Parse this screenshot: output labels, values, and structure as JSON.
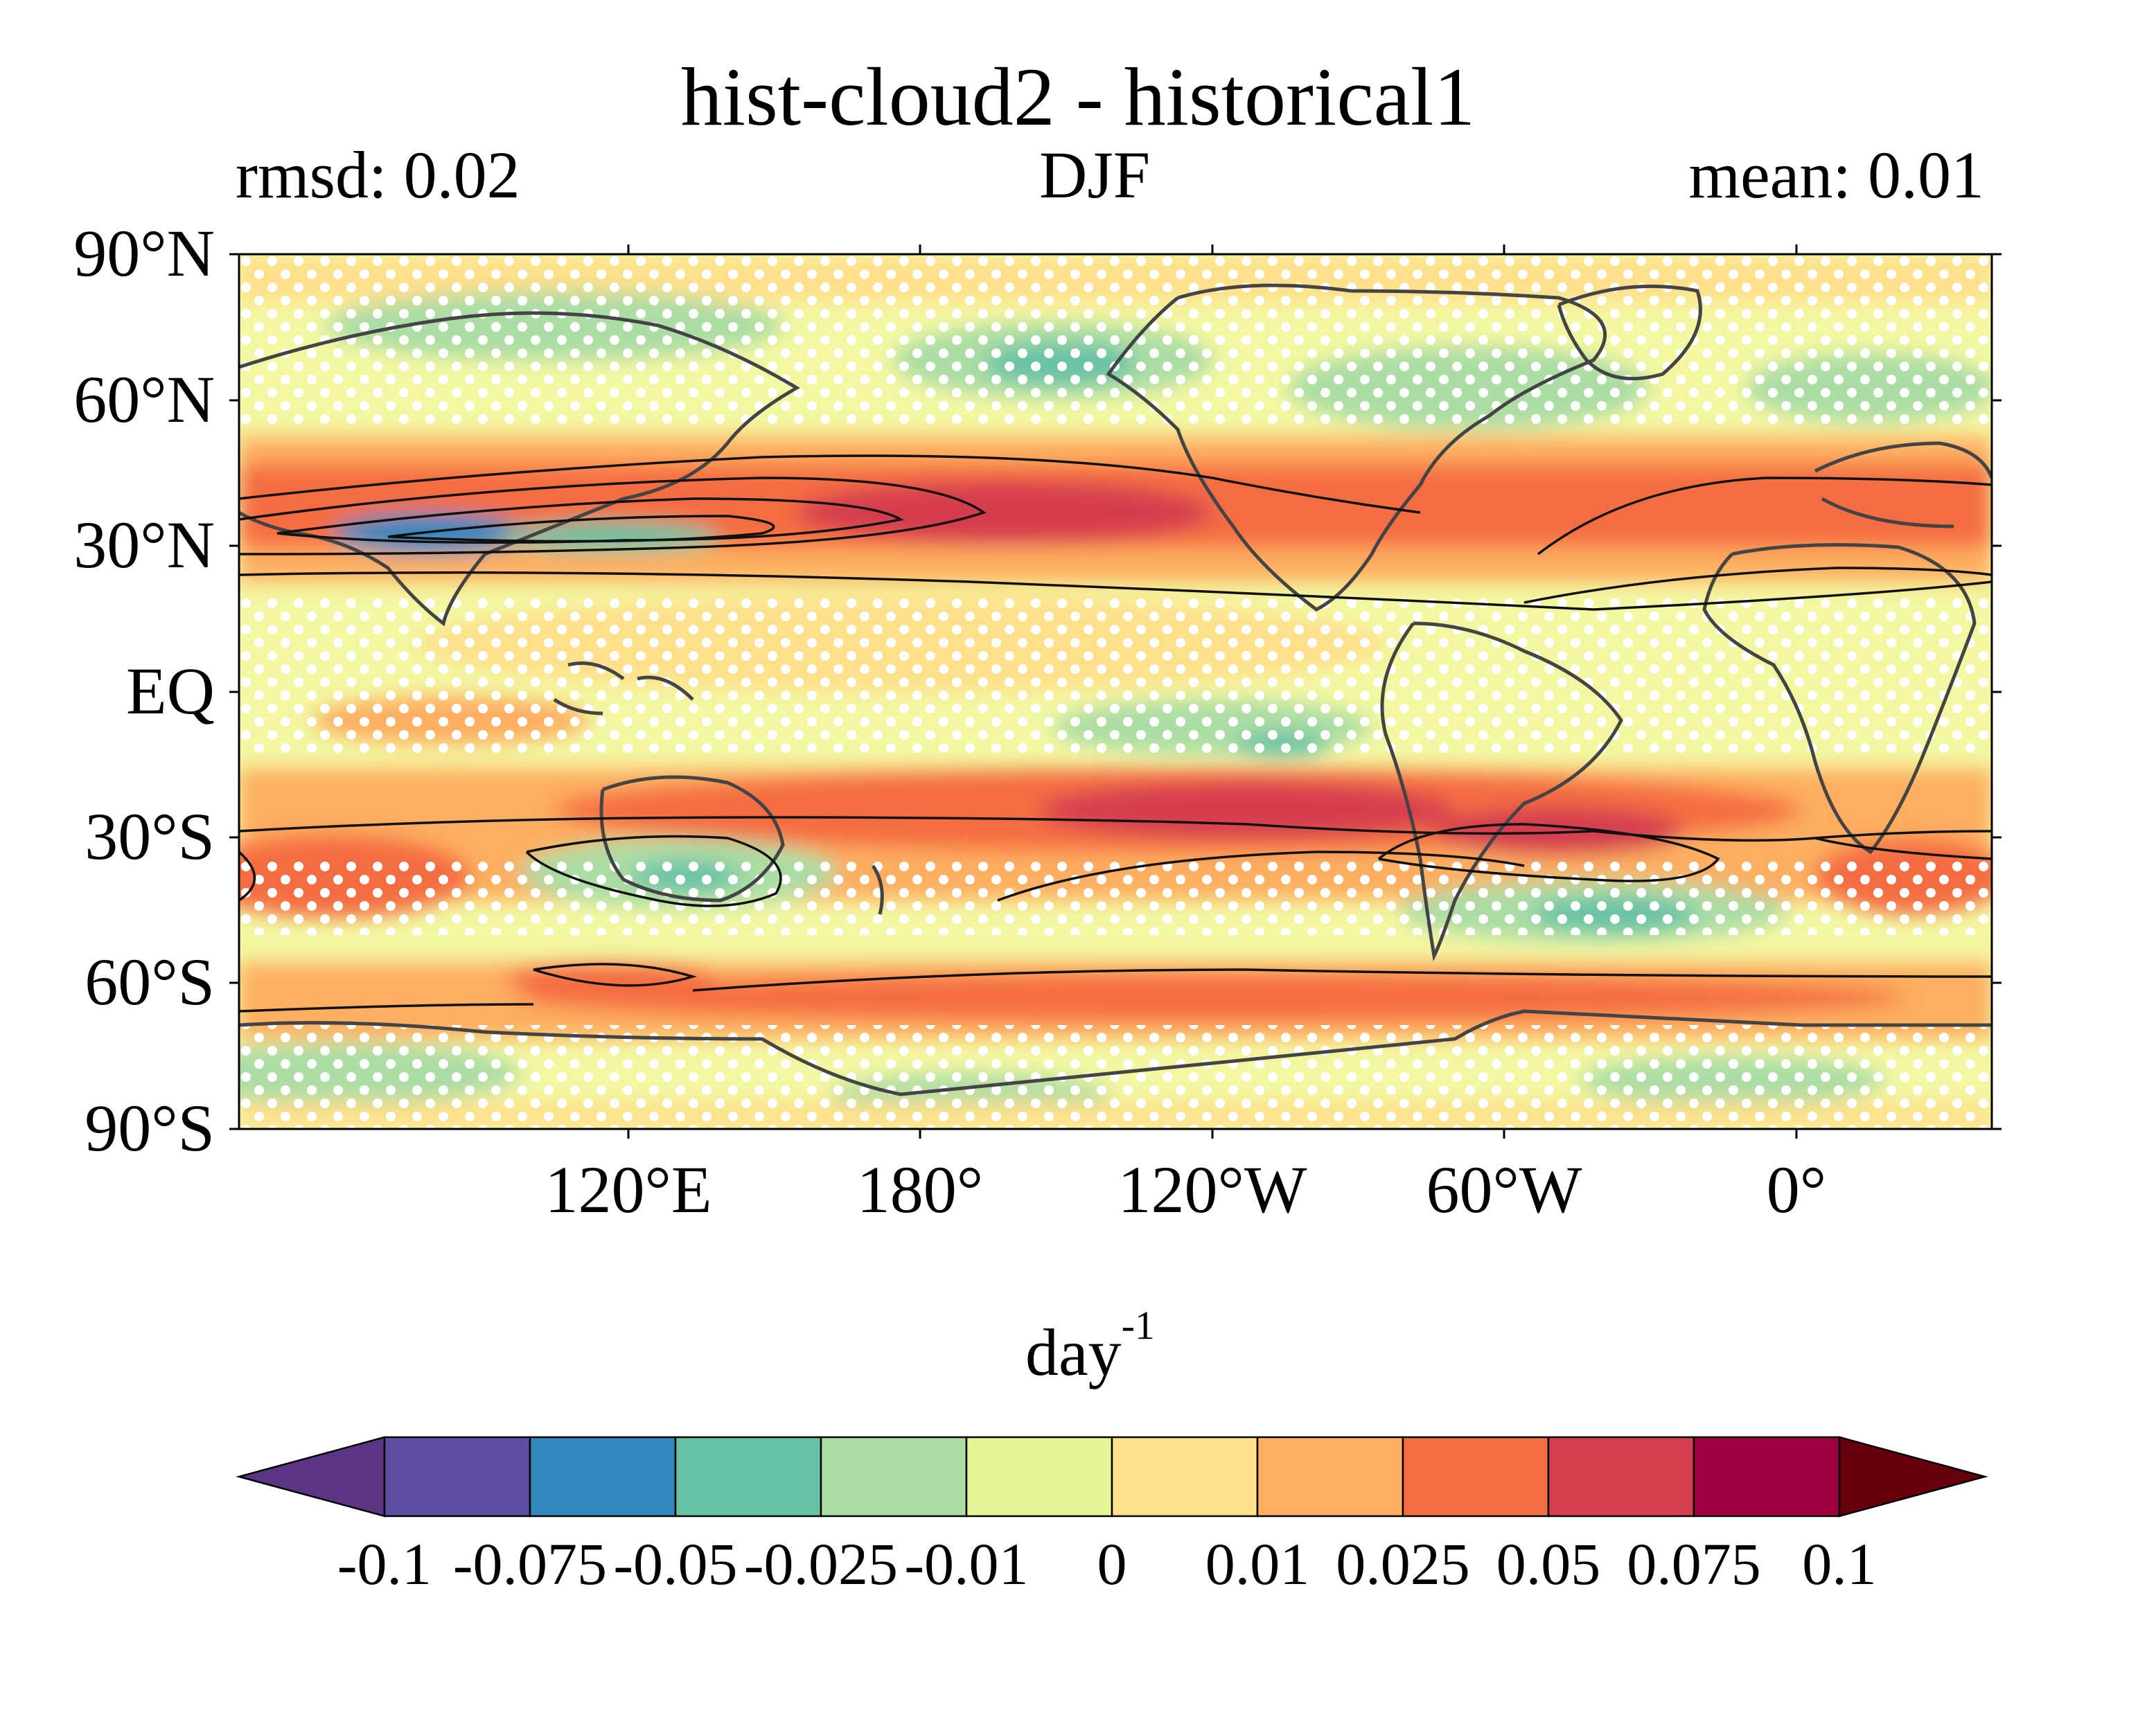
{
  "header": {
    "title": "hist-cloud2 - historical1",
    "rmsd": "rmsd: 0.02",
    "season": "DJF",
    "mean": "mean: 0.01"
  },
  "map": {
    "lat_labels": [
      "90°N",
      "60°N",
      "30°N",
      "EQ",
      "30°S",
      "60°S",
      "90°S"
    ],
    "lon_labels": [
      "120°E",
      "180°",
      "120°W",
      "60°W",
      "0°"
    ],
    "stippling": "white dots",
    "contours": "black lines"
  },
  "colorbar": {
    "units_base": "day",
    "units_exp": "-1",
    "labels": [
      "-0.1",
      "-0.075",
      "-0.05",
      "-0.025",
      "-0.01",
      "0",
      "0.01",
      "0.025",
      "0.05",
      "0.075",
      "0.1"
    ],
    "colors": [
      "#5e4fa2",
      "#3288bd",
      "#66c2a5",
      "#abdda4",
      "#e6f598",
      "#fee08b",
      "#fdae61",
      "#f46d43",
      "#d53e4f",
      "#9e0142"
    ],
    "under_color": "#5b3583",
    "over_color": "#67000d"
  }
}
